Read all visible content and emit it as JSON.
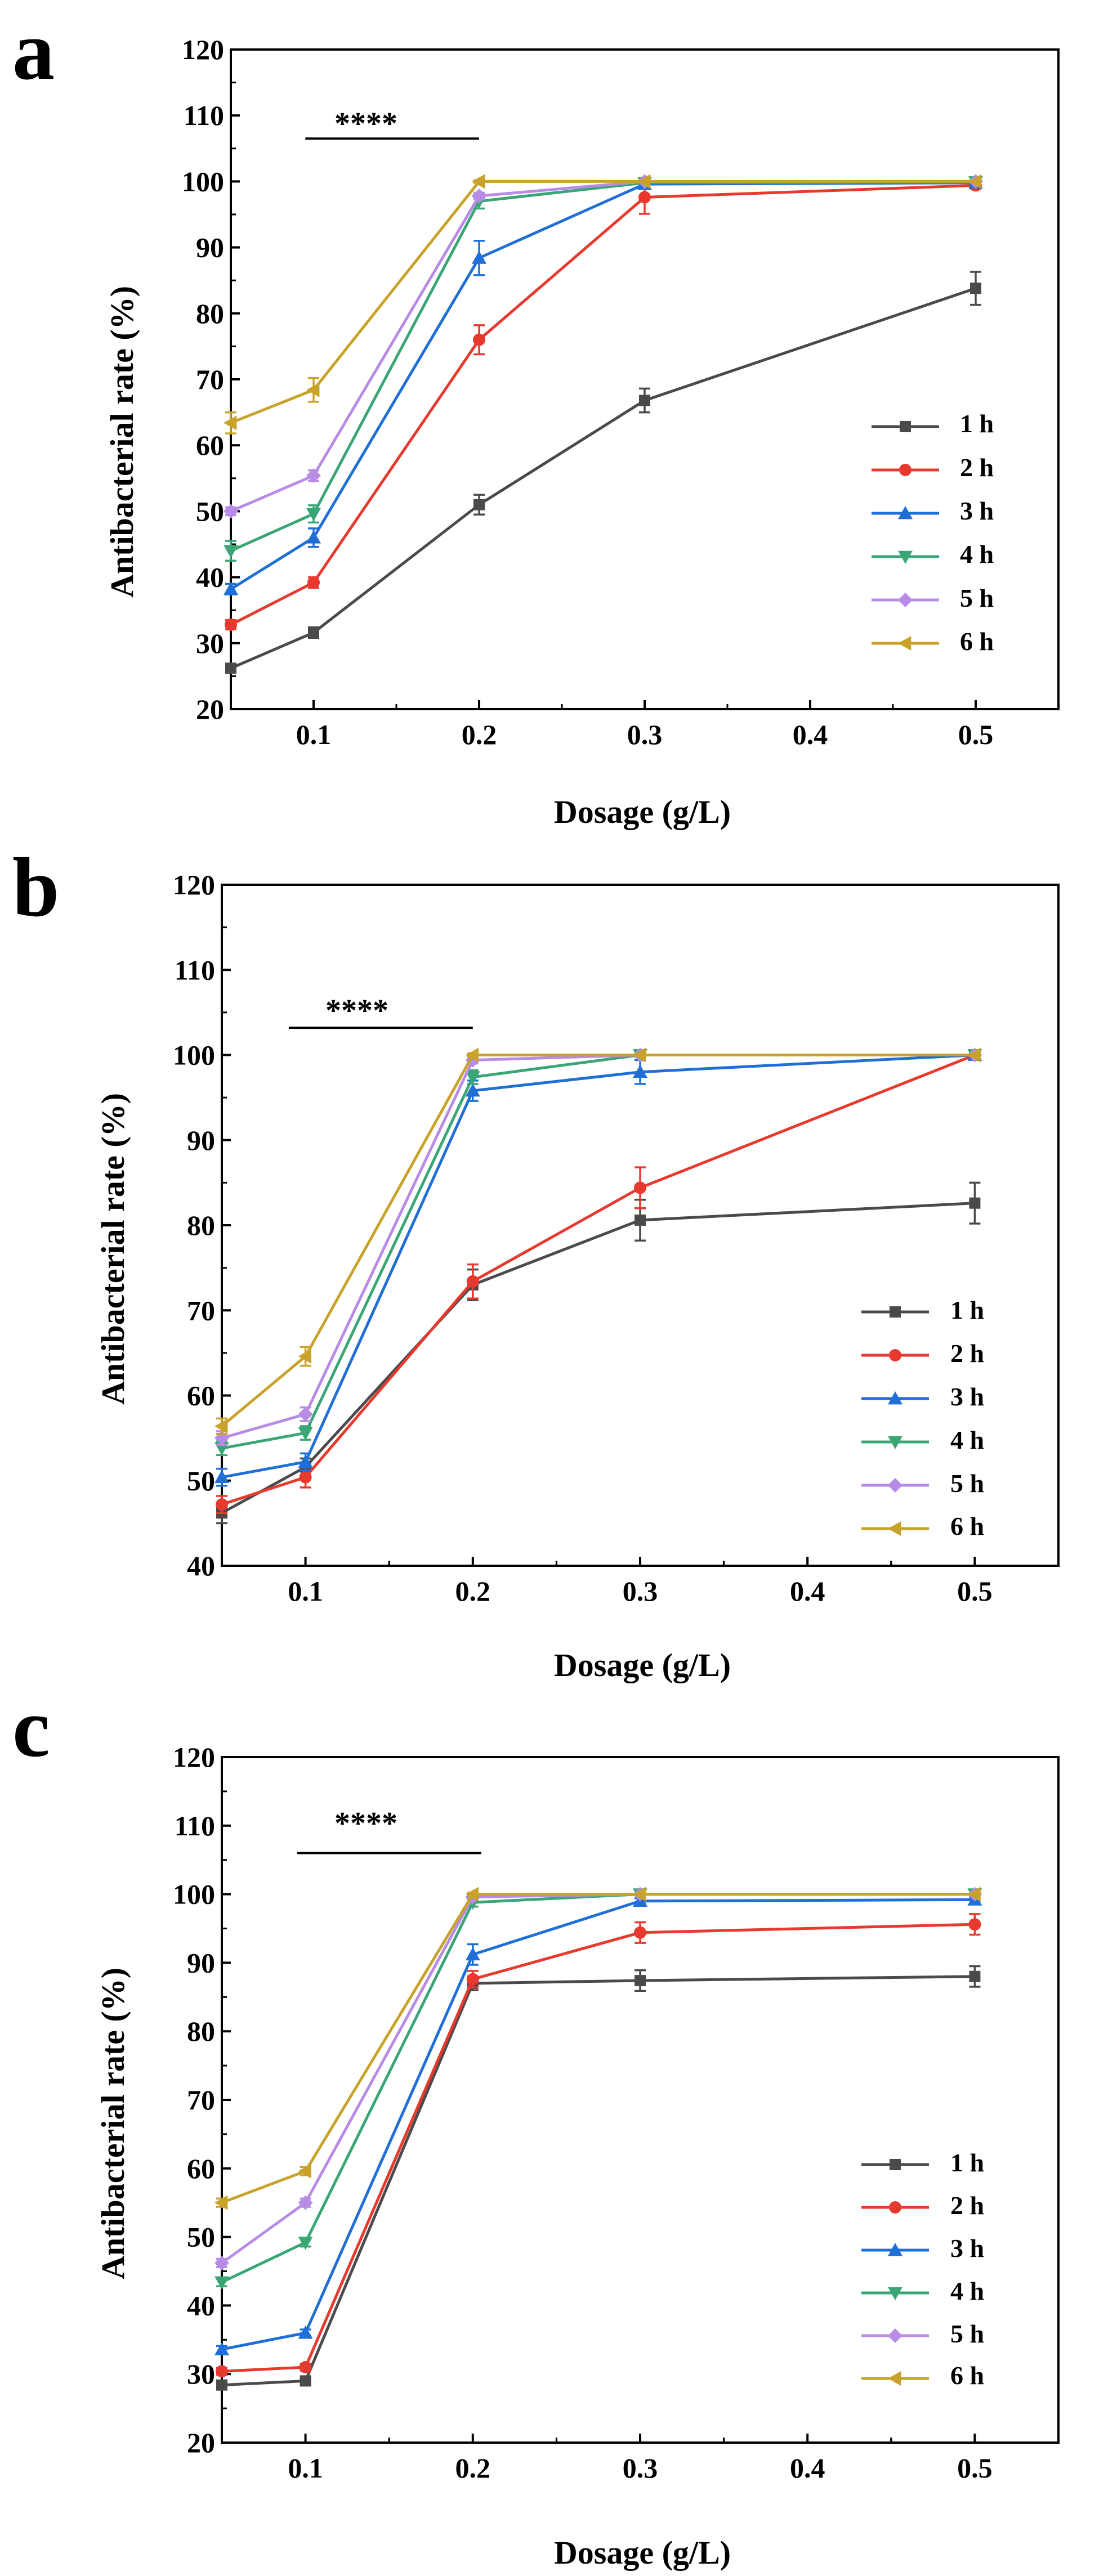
{
  "colors": {
    "1 h": "#4a4a4a",
    "2 h": "#e8392f",
    "3 h": "#1f6fd6",
    "4 h": "#3aa676",
    "5 h": "#b78be6",
    "6 h": "#c9a22a"
  },
  "chart_data": [
    {
      "type": "line",
      "panel_label": "a",
      "xlabel": "Dosage (g/L)",
      "ylabel": "Antibacterial rate (%)",
      "xlim": [
        0.05,
        0.55
      ],
      "ylim": [
        20,
        120
      ],
      "xticks": [
        0.1,
        0.2,
        0.3,
        0.4,
        0.5
      ],
      "xtick_labels": [
        "0.1",
        "0.2",
        "0.3",
        "0.4",
        "0.5"
      ],
      "yticks": [
        20,
        30,
        40,
        50,
        60,
        70,
        80,
        90,
        100,
        110,
        120
      ],
      "ytick_labels": [
        "20",
        "30",
        "40",
        "50",
        "60",
        "70",
        "80",
        "90",
        "100",
        "110",
        "120"
      ],
      "significance": {
        "label": "****",
        "x_start": 0.095,
        "x_end": 0.2,
        "y": 106.5
      },
      "legend_position": "right",
      "x": [
        0.05,
        0.1,
        0.2,
        0.3,
        0.5
      ],
      "series": [
        {
          "name": "1 h",
          "marker": "square",
          "values": [
            26.2,
            31.6,
            51.0,
            66.8,
            83.8
          ],
          "errors": [
            0.6,
            0.8,
            1.5,
            1.8,
            2.5
          ]
        },
        {
          "name": "2 h",
          "marker": "circle",
          "values": [
            32.8,
            39.2,
            76.0,
            97.6,
            99.4
          ],
          "errors": [
            0.7,
            0.8,
            2.2,
            2.5,
            0.5
          ]
        },
        {
          "name": "3 h",
          "marker": "triangle-up",
          "values": [
            38.2,
            46.0,
            88.4,
            99.6,
            99.8
          ],
          "errors": [
            0.8,
            1.4,
            2.6,
            0.3,
            0.2
          ]
        },
        {
          "name": "4 h",
          "marker": "triangle-down",
          "values": [
            44.0,
            49.6,
            97.0,
            99.8,
            99.9
          ],
          "errors": [
            1.5,
            1.3,
            1.1,
            0.2,
            0.1
          ]
        },
        {
          "name": "5 h",
          "marker": "diamond",
          "values": [
            50.0,
            55.4,
            97.8,
            100.0,
            100.0
          ],
          "errors": [
            0.6,
            0.8,
            0.5,
            0.1,
            0.1
          ]
        },
        {
          "name": "6 h",
          "marker": "triangle-left",
          "values": [
            63.4,
            68.4,
            100.0,
            100.0,
            100.0
          ],
          "errors": [
            1.6,
            1.8,
            0.2,
            0.1,
            0.1
          ]
        }
      ]
    },
    {
      "type": "line",
      "panel_label": "b",
      "xlabel": "Dosage (g/L)",
      "ylabel": "Antibacterial rate (%)",
      "xlim": [
        0.05,
        0.55
      ],
      "ylim": [
        40,
        120
      ],
      "xticks": [
        0.1,
        0.2,
        0.3,
        0.4,
        0.5
      ],
      "xtick_labels": [
        "0.1",
        "0.2",
        "0.3",
        "0.4",
        "0.5"
      ],
      "yticks": [
        40,
        50,
        60,
        70,
        80,
        90,
        100,
        110,
        120
      ],
      "ytick_labels": [
        "40",
        "50",
        "60",
        "70",
        "80",
        "90",
        "100",
        "110",
        "120"
      ],
      "significance": {
        "label": "****",
        "x_start": 0.09,
        "x_end": 0.2,
        "y": 103.2
      },
      "legend_position": "right",
      "x": [
        0.05,
        0.1,
        0.2,
        0.3,
        0.5
      ],
      "series": [
        {
          "name": "1 h",
          "marker": "square",
          "values": [
            46.2,
            51.6,
            73.0,
            80.6,
            82.6
          ],
          "errors": [
            1.2,
            1.0,
            1.8,
            2.4,
            2.4
          ]
        },
        {
          "name": "2 h",
          "marker": "circle",
          "values": [
            47.2,
            50.4,
            73.4,
            84.4,
            100.0
          ],
          "errors": [
            1.0,
            1.2,
            2.0,
            2.4,
            0.3
          ]
        },
        {
          "name": "3 h",
          "marker": "triangle-up",
          "values": [
            50.4,
            52.2,
            95.8,
            98.0,
            100.0
          ],
          "errors": [
            1.0,
            1.0,
            1.2,
            1.4,
            0.2
          ]
        },
        {
          "name": "4 h",
          "marker": "triangle-down",
          "values": [
            53.8,
            55.6,
            97.4,
            100.0,
            100.0
          ],
          "errors": [
            0.8,
            0.8,
            0.8,
            0.2,
            0.1
          ]
        },
        {
          "name": "5 h",
          "marker": "diamond",
          "values": [
            55.0,
            57.8,
            99.4,
            100.0,
            100.0
          ],
          "errors": [
            0.8,
            0.8,
            0.4,
            0.1,
            0.1
          ]
        },
        {
          "name": "6 h",
          "marker": "triangle-left",
          "values": [
            56.4,
            64.6,
            100.0,
            100.0,
            100.0
          ],
          "errors": [
            0.9,
            1.1,
            0.2,
            0.1,
            0.1
          ]
        }
      ]
    },
    {
      "type": "line",
      "panel_label": "c",
      "xlabel": "Dosage (g/L)",
      "ylabel": "Antibacterial rate (%)",
      "xlim": [
        0.05,
        0.55
      ],
      "ylim": [
        20,
        120
      ],
      "xticks": [
        0.1,
        0.2,
        0.3,
        0.4,
        0.5
      ],
      "xtick_labels": [
        "0.1",
        "0.2",
        "0.3",
        "0.4",
        "0.5"
      ],
      "yticks": [
        20,
        30,
        40,
        50,
        60,
        70,
        80,
        90,
        100,
        110,
        120
      ],
      "ytick_labels": [
        "20",
        "30",
        "40",
        "50",
        "60",
        "70",
        "80",
        "90",
        "100",
        "110",
        "120"
      ],
      "significance": {
        "label": "****",
        "x_start": 0.095,
        "x_end": 0.205,
        "y": 106.0
      },
      "legend_position": "right",
      "x": [
        0.05,
        0.1,
        0.2,
        0.3,
        0.5
      ],
      "series": [
        {
          "name": "1 h",
          "marker": "square",
          "values": [
            28.4,
            29.0,
            87.0,
            87.4,
            88.0
          ],
          "errors": [
            0.5,
            0.5,
            1.0,
            1.5,
            1.5
          ]
        },
        {
          "name": "2 h",
          "marker": "circle",
          "values": [
            30.4,
            31.0,
            87.6,
            94.4,
            95.6
          ],
          "errors": [
            0.5,
            0.5,
            1.2,
            1.5,
            1.5
          ]
        },
        {
          "name": "3 h",
          "marker": "triangle-up",
          "values": [
            33.6,
            36.0,
            91.2,
            99.0,
            99.2
          ],
          "errors": [
            0.5,
            0.5,
            1.5,
            0.4,
            0.4
          ]
        },
        {
          "name": "4 h",
          "marker": "triangle-down",
          "values": [
            43.4,
            49.2,
            98.8,
            100.0,
            100.0
          ],
          "errors": [
            0.6,
            0.6,
            0.6,
            0.1,
            0.1
          ]
        },
        {
          "name": "5 h",
          "marker": "diamond",
          "values": [
            46.2,
            55.0,
            99.6,
            100.0,
            100.0
          ],
          "errors": [
            0.6,
            0.6,
            0.3,
            0.1,
            0.1
          ]
        },
        {
          "name": "6 h",
          "marker": "triangle-left",
          "values": [
            55.0,
            59.6,
            100.0,
            100.0,
            100.0
          ],
          "errors": [
            0.6,
            0.6,
            0.2,
            0.1,
            0.1
          ]
        }
      ]
    }
  ]
}
